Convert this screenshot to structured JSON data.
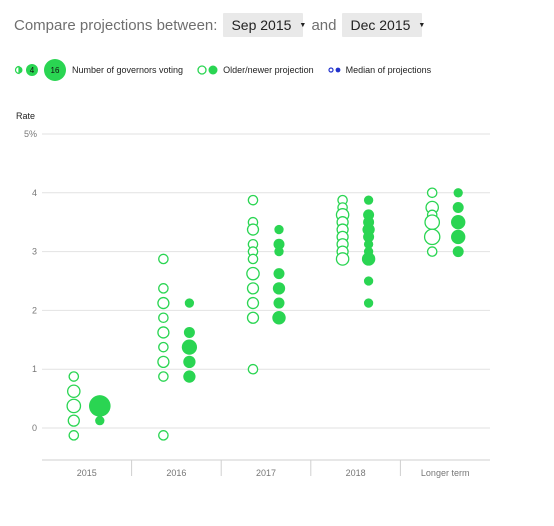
{
  "controls": {
    "prefix": "Compare projections between:",
    "from_value": "Sep 2015",
    "conjunction": "and",
    "to_value": "Dec 2015"
  },
  "legend": {
    "size_small": "4",
    "size_large": "16",
    "size_label": "Number of governors voting",
    "projection_label": "Older/newer projection",
    "median_label": "Median of projections"
  },
  "colors": {
    "newer": "#2ad552",
    "older_stroke": "#2ad552",
    "median": "#2233cc",
    "grid": "#e2e2e2",
    "axis_text": "#777777"
  },
  "chart_data": {
    "type": "scatter",
    "ylabel": "Rate",
    "ylim": [
      -0.4,
      5
    ],
    "yticks": [
      {
        "value": 5,
        "label": "5%"
      },
      {
        "value": 4,
        "label": "4"
      },
      {
        "value": 3,
        "label": "3"
      },
      {
        "value": 2,
        "label": "2"
      },
      {
        "value": 1,
        "label": "1"
      },
      {
        "value": 0,
        "label": "0"
      }
    ],
    "categories": [
      "2015",
      "2016",
      "2017",
      "2018",
      "Longer term"
    ],
    "series": [
      {
        "name": "Older projection",
        "points": [
          {
            "cat": "2015",
            "rate": 0.875,
            "count": 1
          },
          {
            "cat": "2015",
            "rate": 0.625,
            "count": 3
          },
          {
            "cat": "2015",
            "rate": 0.375,
            "count": 4
          },
          {
            "cat": "2015",
            "rate": 0.125,
            "count": 2
          },
          {
            "cat": "2015",
            "rate": -0.125,
            "count": 1
          },
          {
            "cat": "2016",
            "rate": 2.875,
            "count": 1
          },
          {
            "cat": "2016",
            "rate": 2.375,
            "count": 1
          },
          {
            "cat": "2016",
            "rate": 2.125,
            "count": 2
          },
          {
            "cat": "2016",
            "rate": 1.875,
            "count": 1
          },
          {
            "cat": "2016",
            "rate": 1.625,
            "count": 2
          },
          {
            "cat": "2016",
            "rate": 1.375,
            "count": 1
          },
          {
            "cat": "2016",
            "rate": 1.125,
            "count": 2
          },
          {
            "cat": "2016",
            "rate": 0.875,
            "count": 1
          },
          {
            "cat": "2016",
            "rate": -0.125,
            "count": 1
          },
          {
            "cat": "2017",
            "rate": 3.875,
            "count": 1
          },
          {
            "cat": "2017",
            "rate": 3.5,
            "count": 1
          },
          {
            "cat": "2017",
            "rate": 3.375,
            "count": 2
          },
          {
            "cat": "2017",
            "rate": 3.125,
            "count": 1
          },
          {
            "cat": "2017",
            "rate": 3.0,
            "count": 1
          },
          {
            "cat": "2017",
            "rate": 2.875,
            "count": 1
          },
          {
            "cat": "2017",
            "rate": 2.625,
            "count": 3
          },
          {
            "cat": "2017",
            "rate": 2.375,
            "count": 2
          },
          {
            "cat": "2017",
            "rate": 2.125,
            "count": 2
          },
          {
            "cat": "2017",
            "rate": 1.875,
            "count": 2
          },
          {
            "cat": "2017",
            "rate": 1.0,
            "count": 1
          },
          {
            "cat": "2018",
            "rate": 3.875,
            "count": 1
          },
          {
            "cat": "2018",
            "rate": 3.75,
            "count": 1
          },
          {
            "cat": "2018",
            "rate": 3.625,
            "count": 3
          },
          {
            "cat": "2018",
            "rate": 3.5,
            "count": 2
          },
          {
            "cat": "2018",
            "rate": 3.375,
            "count": 2
          },
          {
            "cat": "2018",
            "rate": 3.25,
            "count": 2
          },
          {
            "cat": "2018",
            "rate": 3.125,
            "count": 2
          },
          {
            "cat": "2018",
            "rate": 3.0,
            "count": 2
          },
          {
            "cat": "2018",
            "rate": 2.875,
            "count": 3
          },
          {
            "cat": "Longer term",
            "rate": 4.0,
            "count": 1
          },
          {
            "cat": "Longer term",
            "rate": 3.75,
            "count": 3
          },
          {
            "cat": "Longer term",
            "rate": 3.625,
            "count": 1
          },
          {
            "cat": "Longer term",
            "rate": 3.5,
            "count": 5
          },
          {
            "cat": "Longer term",
            "rate": 3.25,
            "count": 6
          },
          {
            "cat": "Longer term",
            "rate": 3.0,
            "count": 1
          }
        ]
      },
      {
        "name": "Newer projection",
        "points": [
          {
            "cat": "2015",
            "rate": 0.375,
            "count": 16
          },
          {
            "cat": "2015",
            "rate": 0.125,
            "count": 1
          },
          {
            "cat": "2016",
            "rate": 2.125,
            "count": 1
          },
          {
            "cat": "2016",
            "rate": 1.625,
            "count": 2
          },
          {
            "cat": "2016",
            "rate": 1.375,
            "count": 6
          },
          {
            "cat": "2016",
            "rate": 1.125,
            "count": 3
          },
          {
            "cat": "2016",
            "rate": 0.875,
            "count": 3
          },
          {
            "cat": "2017",
            "rate": 3.375,
            "count": 1
          },
          {
            "cat": "2017",
            "rate": 3.125,
            "count": 2
          },
          {
            "cat": "2017",
            "rate": 3.0,
            "count": 1
          },
          {
            "cat": "2017",
            "rate": 2.625,
            "count": 2
          },
          {
            "cat": "2017",
            "rate": 2.375,
            "count": 3
          },
          {
            "cat": "2017",
            "rate": 2.125,
            "count": 2
          },
          {
            "cat": "2017",
            "rate": 1.875,
            "count": 4
          },
          {
            "cat": "2018",
            "rate": 3.875,
            "count": 1
          },
          {
            "cat": "2018",
            "rate": 3.625,
            "count": 2
          },
          {
            "cat": "2018",
            "rate": 3.5,
            "count": 2
          },
          {
            "cat": "2018",
            "rate": 3.375,
            "count": 3
          },
          {
            "cat": "2018",
            "rate": 3.25,
            "count": 2
          },
          {
            "cat": "2018",
            "rate": 3.125,
            "count": 1
          },
          {
            "cat": "2018",
            "rate": 3.0,
            "count": 1
          },
          {
            "cat": "2018",
            "rate": 2.875,
            "count": 4
          },
          {
            "cat": "2018",
            "rate": 2.5,
            "count": 1
          },
          {
            "cat": "2018",
            "rate": 2.125,
            "count": 1
          },
          {
            "cat": "Longer term",
            "rate": 4.0,
            "count": 1
          },
          {
            "cat": "Longer term",
            "rate": 3.75,
            "count": 2
          },
          {
            "cat": "Longer term",
            "rate": 3.5,
            "count": 5
          },
          {
            "cat": "Longer term",
            "rate": 3.25,
            "count": 5
          },
          {
            "cat": "Longer term",
            "rate": 3.0,
            "count": 2
          }
        ]
      }
    ],
    "grid": true
  }
}
